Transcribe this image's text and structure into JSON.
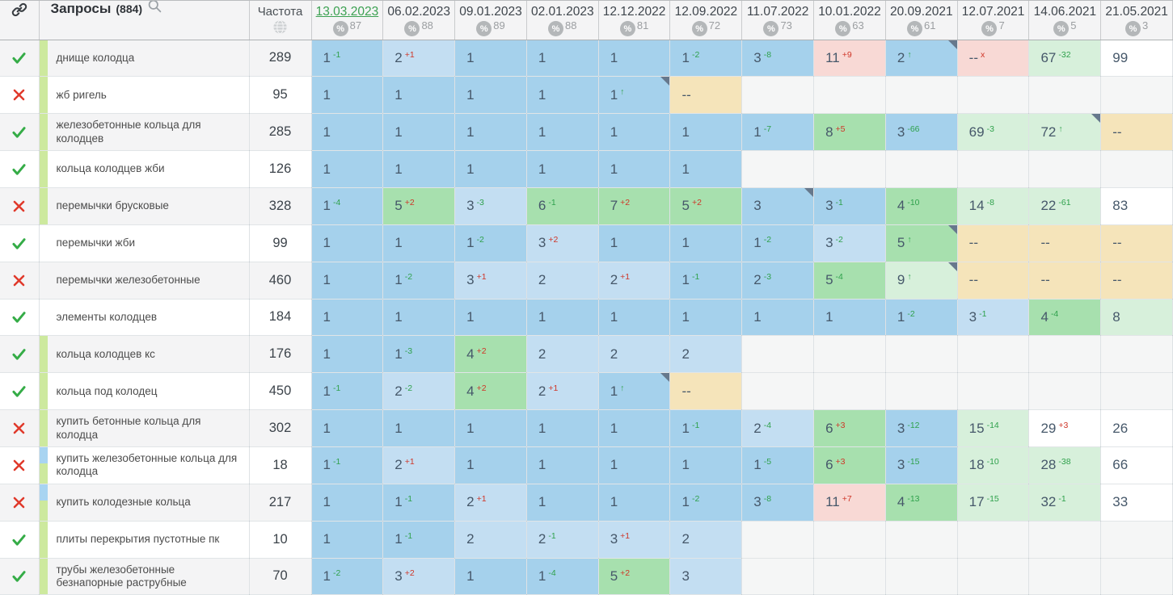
{
  "header": {
    "link_column_icon": "link-icon",
    "queries_label": "Запросы",
    "queries_count": "(884)",
    "search_icon": "magnifier-icon",
    "frequency_label": "Частота",
    "frequency_icon": "globe-icon",
    "dates": [
      {
        "label": "13.03.2023",
        "visibility_pct": "87",
        "selected": true
      },
      {
        "label": "06.02.2023",
        "visibility_pct": "88",
        "selected": false
      },
      {
        "label": "09.01.2023",
        "visibility_pct": "89",
        "selected": false
      },
      {
        "label": "02.01.2023",
        "visibility_pct": "88",
        "selected": false
      },
      {
        "label": "12.12.2022",
        "visibility_pct": "81",
        "selected": false
      },
      {
        "label": "12.09.2022",
        "visibility_pct": "72",
        "selected": false
      },
      {
        "label": "11.07.2022",
        "visibility_pct": "73",
        "selected": false
      },
      {
        "label": "10.01.2022",
        "visibility_pct": "63",
        "selected": false
      },
      {
        "label": "20.09.2021",
        "visibility_pct": "61",
        "selected": false
      },
      {
        "label": "12.07.2021",
        "visibility_pct": "7",
        "selected": false
      },
      {
        "label": "14.06.2021",
        "visibility_pct": "5",
        "selected": false
      },
      {
        "label": "21.05.2021",
        "visibility_pct": "3",
        "selected": false
      }
    ]
  },
  "palette": {
    "b1": "#a5d1ec",
    "b2": "#c3def2",
    "g1": "#a7e0ae",
    "g2": "#d7f0db",
    "p": "#f8d9d5",
    "y": "#f5e4ba",
    "w": "#ffffff",
    "e": "#f5f6f6",
    "zebra_odd": "#f4f4f5",
    "zebra_even": "#ffffff",
    "stripe_green": "#cde99e",
    "stripe_blue": "#a8d4f1",
    "check_green": "#35ac47",
    "cross_red": "#e0392b",
    "selected_date_green": "#3ca152",
    "sup_green": "#2fa14c",
    "sup_red": "#cf3527"
  },
  "rows": [
    {
      "status": "check",
      "stripe": "green",
      "query": "днище колодца",
      "frequency": "289",
      "cells": [
        {
          "v": "1",
          "sup": "-1",
          "sc": "g",
          "bg": "b1"
        },
        {
          "v": "2",
          "sup": "+1",
          "sc": "r",
          "bg": "b2"
        },
        {
          "v": "1",
          "bg": "b1"
        },
        {
          "v": "1",
          "bg": "b1"
        },
        {
          "v": "1",
          "bg": "b1"
        },
        {
          "v": "1",
          "sup": "-2",
          "sc": "g",
          "bg": "b1"
        },
        {
          "v": "3",
          "sup": "-8",
          "sc": "g",
          "bg": "b1"
        },
        {
          "v": "11",
          "sup": "+9",
          "sc": "r",
          "bg": "p"
        },
        {
          "v": "2",
          "sup": "↑",
          "sc": "g",
          "bg": "b1",
          "tri": true
        },
        {
          "v": "--",
          "sup": "x",
          "sc": "r",
          "bg": "p"
        },
        {
          "v": "67",
          "sup": "-32",
          "sc": "g",
          "bg": "g2"
        },
        {
          "v": "99",
          "bg": "w"
        }
      ]
    },
    {
      "status": "cross",
      "stripe": "green",
      "query": "жб ригель",
      "frequency": "95",
      "cells": [
        {
          "v": "1",
          "bg": "b1"
        },
        {
          "v": "1",
          "bg": "b1"
        },
        {
          "v": "1",
          "bg": "b1"
        },
        {
          "v": "1",
          "bg": "b1"
        },
        {
          "v": "1",
          "sup": "↑",
          "sc": "g",
          "bg": "b1",
          "tri": true
        },
        {
          "v": "--",
          "bg": "y"
        },
        {
          "bg": "e"
        },
        {
          "bg": "e"
        },
        {
          "bg": "e"
        },
        {
          "bg": "e"
        },
        {
          "bg": "e"
        },
        {
          "bg": "e"
        }
      ]
    },
    {
      "status": "check",
      "stripe": "green",
      "query": "железобетонные кольца для колодцев",
      "frequency": "285",
      "cells": [
        {
          "v": "1",
          "bg": "b1"
        },
        {
          "v": "1",
          "bg": "b1"
        },
        {
          "v": "1",
          "bg": "b1"
        },
        {
          "v": "1",
          "bg": "b1"
        },
        {
          "v": "1",
          "bg": "b1"
        },
        {
          "v": "1",
          "bg": "b1"
        },
        {
          "v": "1",
          "sup": "-7",
          "sc": "g",
          "bg": "b1"
        },
        {
          "v": "8",
          "sup": "+5",
          "sc": "r",
          "bg": "g1"
        },
        {
          "v": "3",
          "sup": "-66",
          "sc": "g",
          "bg": "b1"
        },
        {
          "v": "69",
          "sup": "-3",
          "sc": "g",
          "bg": "g2"
        },
        {
          "v": "72",
          "sup": "↑",
          "sc": "g",
          "bg": "g2",
          "tri": true
        },
        {
          "v": "--",
          "bg": "y"
        }
      ]
    },
    {
      "status": "check",
      "stripe": "green",
      "query": "кольца колодцев жби",
      "frequency": "126",
      "cells": [
        {
          "v": "1",
          "bg": "b1"
        },
        {
          "v": "1",
          "bg": "b1"
        },
        {
          "v": "1",
          "bg": "b1"
        },
        {
          "v": "1",
          "bg": "b1"
        },
        {
          "v": "1",
          "bg": "b1"
        },
        {
          "v": "1",
          "bg": "b1"
        },
        {
          "bg": "e"
        },
        {
          "bg": "e"
        },
        {
          "bg": "e"
        },
        {
          "bg": "e"
        },
        {
          "bg": "e"
        },
        {
          "bg": "e"
        }
      ]
    },
    {
      "status": "cross",
      "stripe": "green",
      "query": "перемычки брусковые",
      "frequency": "328",
      "cells": [
        {
          "v": "1",
          "sup": "-4",
          "sc": "g",
          "bg": "b1"
        },
        {
          "v": "5",
          "sup": "+2",
          "sc": "r",
          "bg": "g1"
        },
        {
          "v": "3",
          "sup": "-3",
          "sc": "g",
          "bg": "b2"
        },
        {
          "v": "6",
          "sup": "-1",
          "sc": "g",
          "bg": "g1"
        },
        {
          "v": "7",
          "sup": "+2",
          "sc": "r",
          "bg": "g1"
        },
        {
          "v": "5",
          "sup": "+2",
          "sc": "r",
          "bg": "g1"
        },
        {
          "v": "3",
          "bg": "b1",
          "tri": true
        },
        {
          "v": "3",
          "sup": "-1",
          "sc": "g",
          "bg": "b1"
        },
        {
          "v": "4",
          "sup": "-10",
          "sc": "g",
          "bg": "g1"
        },
        {
          "v": "14",
          "sup": "-8",
          "sc": "g",
          "bg": "g2"
        },
        {
          "v": "22",
          "sup": "-61",
          "sc": "g",
          "bg": "g2"
        },
        {
          "v": "83",
          "bg": "w"
        }
      ]
    },
    {
      "status": "check",
      "stripe": "none",
      "query": "перемычки жби",
      "frequency": "99",
      "cells": [
        {
          "v": "1",
          "bg": "b1"
        },
        {
          "v": "1",
          "bg": "b1"
        },
        {
          "v": "1",
          "sup": "-2",
          "sc": "g",
          "bg": "b1"
        },
        {
          "v": "3",
          "sup": "+2",
          "sc": "r",
          "bg": "b2"
        },
        {
          "v": "1",
          "bg": "b1"
        },
        {
          "v": "1",
          "bg": "b1"
        },
        {
          "v": "1",
          "sup": "-2",
          "sc": "g",
          "bg": "b1"
        },
        {
          "v": "3",
          "sup": "-2",
          "sc": "g",
          "bg": "b2"
        },
        {
          "v": "5",
          "sup": "↑",
          "sc": "g",
          "bg": "g1",
          "tri": true
        },
        {
          "v": "--",
          "bg": "y"
        },
        {
          "v": "--",
          "bg": "y"
        },
        {
          "v": "--",
          "bg": "y"
        }
      ]
    },
    {
      "status": "cross",
      "stripe": "none",
      "query": "перемычки железобетонные",
      "frequency": "460",
      "cells": [
        {
          "v": "1",
          "bg": "b1"
        },
        {
          "v": "1",
          "sup": "-2",
          "sc": "g",
          "bg": "b1"
        },
        {
          "v": "3",
          "sup": "+1",
          "sc": "r",
          "bg": "b2"
        },
        {
          "v": "2",
          "bg": "b2"
        },
        {
          "v": "2",
          "sup": "+1",
          "sc": "r",
          "bg": "b2"
        },
        {
          "v": "1",
          "sup": "-1",
          "sc": "g",
          "bg": "b1"
        },
        {
          "v": "2",
          "sup": "-3",
          "sc": "g",
          "bg": "b1"
        },
        {
          "v": "5",
          "sup": "-4",
          "sc": "g",
          "bg": "g1"
        },
        {
          "v": "9",
          "sup": "↑",
          "sc": "g",
          "bg": "g2",
          "tri": true
        },
        {
          "v": "--",
          "bg": "y"
        },
        {
          "v": "--",
          "bg": "y"
        },
        {
          "v": "--",
          "bg": "y"
        }
      ]
    },
    {
      "status": "check",
      "stripe": "none",
      "query": "элементы колодцев",
      "frequency": "184",
      "cells": [
        {
          "v": "1",
          "bg": "b1"
        },
        {
          "v": "1",
          "bg": "b1"
        },
        {
          "v": "1",
          "bg": "b1"
        },
        {
          "v": "1",
          "bg": "b1"
        },
        {
          "v": "1",
          "bg": "b1"
        },
        {
          "v": "1",
          "bg": "b1"
        },
        {
          "v": "1",
          "bg": "b1"
        },
        {
          "v": "1",
          "bg": "b1"
        },
        {
          "v": "1",
          "sup": "-2",
          "sc": "g",
          "bg": "b1"
        },
        {
          "v": "3",
          "sup": "-1",
          "sc": "g",
          "bg": "b2"
        },
        {
          "v": "4",
          "sup": "-4",
          "sc": "g",
          "bg": "g1"
        },
        {
          "v": "8",
          "bg": "g2"
        }
      ]
    },
    {
      "status": "check",
      "stripe": "green",
      "query": "кольца колодцев кс",
      "frequency": "176",
      "cells": [
        {
          "v": "1",
          "bg": "b1"
        },
        {
          "v": "1",
          "sup": "-3",
          "sc": "g",
          "bg": "b1"
        },
        {
          "v": "4",
          "sup": "+2",
          "sc": "r",
          "bg": "g1"
        },
        {
          "v": "2",
          "bg": "b2"
        },
        {
          "v": "2",
          "bg": "b2"
        },
        {
          "v": "2",
          "bg": "b2"
        },
        {
          "bg": "e"
        },
        {
          "bg": "e"
        },
        {
          "bg": "e"
        },
        {
          "bg": "e"
        },
        {
          "bg": "e"
        },
        {
          "bg": "e"
        }
      ]
    },
    {
      "status": "check",
      "stripe": "green",
      "query": "кольца под колодец",
      "frequency": "450",
      "cells": [
        {
          "v": "1",
          "sup": "-1",
          "sc": "g",
          "bg": "b1"
        },
        {
          "v": "2",
          "sup": "-2",
          "sc": "g",
          "bg": "b2"
        },
        {
          "v": "4",
          "sup": "+2",
          "sc": "r",
          "bg": "g1"
        },
        {
          "v": "2",
          "sup": "+1",
          "sc": "r",
          "bg": "b2"
        },
        {
          "v": "1",
          "sup": "↑",
          "sc": "g",
          "bg": "b1",
          "tri": true
        },
        {
          "v": "--",
          "bg": "y"
        },
        {
          "bg": "e"
        },
        {
          "bg": "e"
        },
        {
          "bg": "e"
        },
        {
          "bg": "e"
        },
        {
          "bg": "e"
        },
        {
          "bg": "e"
        }
      ]
    },
    {
      "status": "cross",
      "stripe": "green",
      "query": "купить бетонные кольца для колодца",
      "frequency": "302",
      "cells": [
        {
          "v": "1",
          "bg": "b1"
        },
        {
          "v": "1",
          "bg": "b1"
        },
        {
          "v": "1",
          "bg": "b1"
        },
        {
          "v": "1",
          "bg": "b1"
        },
        {
          "v": "1",
          "bg": "b1"
        },
        {
          "v": "1",
          "sup": "-1",
          "sc": "g",
          "bg": "b1"
        },
        {
          "v": "2",
          "sup": "-4",
          "sc": "g",
          "bg": "b2"
        },
        {
          "v": "6",
          "sup": "+3",
          "sc": "r",
          "bg": "g1"
        },
        {
          "v": "3",
          "sup": "-12",
          "sc": "g",
          "bg": "b1"
        },
        {
          "v": "15",
          "sup": "-14",
          "sc": "g",
          "bg": "g2"
        },
        {
          "v": "29",
          "sup": "+3",
          "sc": "r",
          "bg": "w"
        },
        {
          "v": "26",
          "bg": "w"
        }
      ]
    },
    {
      "status": "cross",
      "stripe": "blue-green",
      "query": "купить железобетонные кольца для колодца",
      "frequency": "18",
      "cells": [
        {
          "v": "1",
          "sup": "-1",
          "sc": "g",
          "bg": "b1"
        },
        {
          "v": "2",
          "sup": "+1",
          "sc": "r",
          "bg": "b2"
        },
        {
          "v": "1",
          "bg": "b1"
        },
        {
          "v": "1",
          "bg": "b1"
        },
        {
          "v": "1",
          "bg": "b1"
        },
        {
          "v": "1",
          "bg": "b1"
        },
        {
          "v": "1",
          "sup": "-5",
          "sc": "g",
          "bg": "b1"
        },
        {
          "v": "6",
          "sup": "+3",
          "sc": "r",
          "bg": "g1"
        },
        {
          "v": "3",
          "sup": "-15",
          "sc": "g",
          "bg": "b1"
        },
        {
          "v": "18",
          "sup": "-10",
          "sc": "g",
          "bg": "g2"
        },
        {
          "v": "28",
          "sup": "-38",
          "sc": "g",
          "bg": "g2"
        },
        {
          "v": "66",
          "bg": "w"
        }
      ]
    },
    {
      "status": "cross",
      "stripe": "blue-green",
      "query": "купить колодезные кольца",
      "frequency": "217",
      "cells": [
        {
          "v": "1",
          "bg": "b1"
        },
        {
          "v": "1",
          "sup": "-1",
          "sc": "g",
          "bg": "b1"
        },
        {
          "v": "2",
          "sup": "+1",
          "sc": "r",
          "bg": "b2"
        },
        {
          "v": "1",
          "bg": "b1"
        },
        {
          "v": "1",
          "bg": "b1"
        },
        {
          "v": "1",
          "sup": "-2",
          "sc": "g",
          "bg": "b1"
        },
        {
          "v": "3",
          "sup": "-8",
          "sc": "g",
          "bg": "b1"
        },
        {
          "v": "11",
          "sup": "+7",
          "sc": "r",
          "bg": "p"
        },
        {
          "v": "4",
          "sup": "-13",
          "sc": "g",
          "bg": "g1"
        },
        {
          "v": "17",
          "sup": "-15",
          "sc": "g",
          "bg": "g2"
        },
        {
          "v": "32",
          "sup": "-1",
          "sc": "g",
          "bg": "g2"
        },
        {
          "v": "33",
          "bg": "w"
        }
      ]
    },
    {
      "status": "check",
      "stripe": "green",
      "query": "плиты перекрытия пустотные пк",
      "frequency": "10",
      "cells": [
        {
          "v": "1",
          "bg": "b1"
        },
        {
          "v": "1",
          "sup": "-1",
          "sc": "g",
          "bg": "b1"
        },
        {
          "v": "2",
          "bg": "b2"
        },
        {
          "v": "2",
          "sup": "-1",
          "sc": "g",
          "bg": "b2"
        },
        {
          "v": "3",
          "sup": "+1",
          "sc": "r",
          "bg": "b2"
        },
        {
          "v": "2",
          "bg": "b2"
        },
        {
          "bg": "e"
        },
        {
          "bg": "e"
        },
        {
          "bg": "e"
        },
        {
          "bg": "e"
        },
        {
          "bg": "e"
        },
        {
          "bg": "e"
        }
      ]
    },
    {
      "status": "check",
      "stripe": "green",
      "query": "трубы железобетонные безнапорные раструбные",
      "frequency": "70",
      "cells": [
        {
          "v": "1",
          "sup": "-2",
          "sc": "g",
          "bg": "b1"
        },
        {
          "v": "3",
          "sup": "+2",
          "sc": "r",
          "bg": "b2"
        },
        {
          "v": "1",
          "bg": "b1"
        },
        {
          "v": "1",
          "sup": "-4",
          "sc": "g",
          "bg": "b1"
        },
        {
          "v": "5",
          "sup": "+2",
          "sc": "r",
          "bg": "g1"
        },
        {
          "v": "3",
          "bg": "b2"
        },
        {
          "bg": "e"
        },
        {
          "bg": "e"
        },
        {
          "bg": "e"
        },
        {
          "bg": "e"
        },
        {
          "bg": "e"
        },
        {
          "bg": "e"
        }
      ]
    }
  ]
}
